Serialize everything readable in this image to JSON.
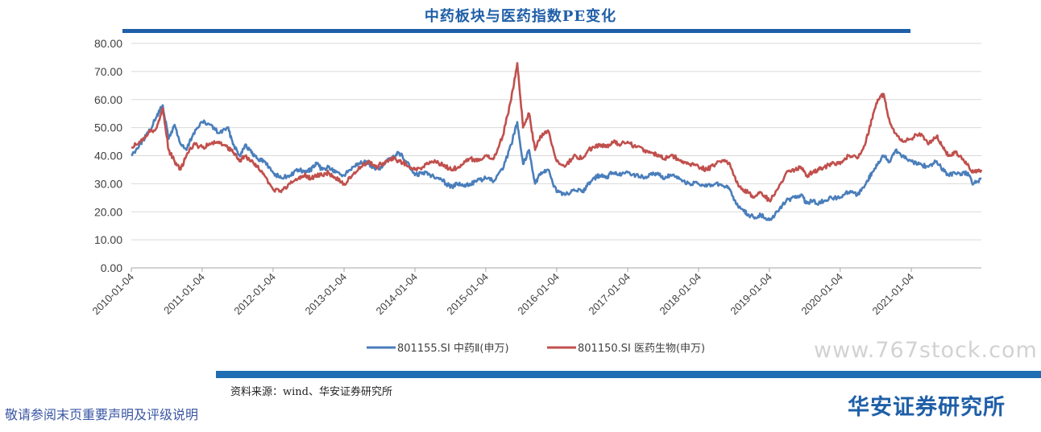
{
  "chart_data": {
    "type": "line",
    "title": "中药板块与医药指数PE变化",
    "ylim": [
      0,
      80
    ],
    "ytick_labels": [
      "0.00",
      "10.00",
      "20.00",
      "30.00",
      "40.00",
      "50.00",
      "60.00",
      "70.00",
      "80.00"
    ],
    "x_ticks": [
      "2010-01-04",
      "2011-01-04",
      "2012-01-04",
      "2013-01-04",
      "2014-01-04",
      "2015-01-04",
      "2016-01-04",
      "2017-01-04",
      "2018-01-04",
      "2019-01-04",
      "2020-01-04",
      "2021-01-04"
    ],
    "x_range": [
      "2010-01-04",
      "2021-12-31"
    ],
    "grid": true,
    "legend_position": "bottom",
    "series": [
      {
        "name": "801155.SI 中药Ⅱ(申万)",
        "color": "#4a7ebb",
        "points": [
          [
            "2010-01-04",
            40
          ],
          [
            "2010-02-15",
            44
          ],
          [
            "2010-04-01",
            48
          ],
          [
            "2010-05-15",
            54
          ],
          [
            "2010-06-15",
            58
          ],
          [
            "2010-07-15",
            46
          ],
          [
            "2010-08-15",
            51
          ],
          [
            "2010-09-15",
            44
          ],
          [
            "2010-10-15",
            42
          ],
          [
            "2010-11-20",
            48
          ],
          [
            "2011-01-04",
            52
          ],
          [
            "2011-02-15",
            51
          ],
          [
            "2011-04-01",
            48
          ],
          [
            "2011-05-15",
            50
          ],
          [
            "2011-06-15",
            44
          ],
          [
            "2011-07-15",
            40
          ],
          [
            "2011-08-15",
            44
          ],
          [
            "2011-09-15",
            41
          ],
          [
            "2011-10-15",
            39
          ],
          [
            "2011-11-20",
            38
          ],
          [
            "2012-01-04",
            34
          ],
          [
            "2012-02-15",
            32
          ],
          [
            "2012-04-01",
            33
          ],
          [
            "2012-05-15",
            35
          ],
          [
            "2012-06-15",
            34
          ],
          [
            "2012-07-15",
            35
          ],
          [
            "2012-08-15",
            37
          ],
          [
            "2012-09-15",
            35
          ],
          [
            "2012-10-15",
            36
          ],
          [
            "2012-11-20",
            34
          ],
          [
            "2013-01-04",
            33
          ],
          [
            "2013-02-15",
            36
          ],
          [
            "2013-04-01",
            38
          ],
          [
            "2013-05-15",
            37
          ],
          [
            "2013-06-15",
            35
          ],
          [
            "2013-07-15",
            36
          ],
          [
            "2013-08-15",
            38
          ],
          [
            "2013-09-15",
            40
          ],
          [
            "2013-10-15",
            41
          ],
          [
            "2013-11-20",
            38
          ],
          [
            "2014-01-04",
            33
          ],
          [
            "2014-02-15",
            34
          ],
          [
            "2014-04-01",
            33
          ],
          [
            "2014-05-15",
            32
          ],
          [
            "2014-06-15",
            30
          ],
          [
            "2014-07-15",
            29
          ],
          [
            "2014-08-15",
            30
          ],
          [
            "2014-09-15",
            29
          ],
          [
            "2014-10-15",
            30
          ],
          [
            "2014-11-20",
            31
          ],
          [
            "2015-01-04",
            32
          ],
          [
            "2015-02-15",
            31
          ],
          [
            "2015-04-01",
            35
          ],
          [
            "2015-05-15",
            44
          ],
          [
            "2015-06-15",
            52
          ],
          [
            "2015-07-15",
            37
          ],
          [
            "2015-08-15",
            42
          ],
          [
            "2015-09-15",
            30
          ],
          [
            "2015-10-15",
            34
          ],
          [
            "2015-11-20",
            35
          ],
          [
            "2016-01-04",
            27
          ],
          [
            "2016-02-15",
            26
          ],
          [
            "2016-04-01",
            28
          ],
          [
            "2016-05-15",
            27
          ],
          [
            "2016-06-15",
            30
          ],
          [
            "2016-07-15",
            32
          ],
          [
            "2016-08-15",
            33
          ],
          [
            "2016-09-15",
            32
          ],
          [
            "2016-10-15",
            34
          ],
          [
            "2016-11-20",
            33
          ],
          [
            "2017-01-04",
            34
          ],
          [
            "2017-02-15",
            33
          ],
          [
            "2017-04-01",
            32
          ],
          [
            "2017-05-15",
            34
          ],
          [
            "2017-06-15",
            33
          ],
          [
            "2017-07-15",
            32
          ],
          [
            "2017-08-15",
            33
          ],
          [
            "2017-09-15",
            32
          ],
          [
            "2017-10-15",
            31
          ],
          [
            "2017-11-20",
            30
          ],
          [
            "2018-01-04",
            30
          ],
          [
            "2018-02-15",
            29
          ],
          [
            "2018-04-01",
            30
          ],
          [
            "2018-05-15",
            29
          ],
          [
            "2018-06-15",
            28
          ],
          [
            "2018-07-15",
            23
          ],
          [
            "2018-08-15",
            21
          ],
          [
            "2018-09-15",
            19
          ],
          [
            "2018-10-15",
            18
          ],
          [
            "2018-11-20",
            19
          ],
          [
            "2019-01-04",
            17
          ],
          [
            "2019-02-15",
            20
          ],
          [
            "2019-04-01",
            24
          ],
          [
            "2019-05-15",
            25
          ],
          [
            "2019-06-15",
            26
          ],
          [
            "2019-07-15",
            23
          ],
          [
            "2019-08-15",
            24
          ],
          [
            "2019-09-15",
            23
          ],
          [
            "2019-10-15",
            24
          ],
          [
            "2019-11-20",
            25
          ],
          [
            "2020-01-04",
            25
          ],
          [
            "2020-02-15",
            27
          ],
          [
            "2020-04-01",
            26
          ],
          [
            "2020-05-15",
            30
          ],
          [
            "2020-06-15",
            34
          ],
          [
            "2020-07-15",
            37
          ],
          [
            "2020-08-15",
            40
          ],
          [
            "2020-09-15",
            38
          ],
          [
            "2020-10-15",
            42
          ],
          [
            "2020-11-20",
            40
          ],
          [
            "2021-01-04",
            38
          ],
          [
            "2021-02-15",
            37
          ],
          [
            "2021-04-01",
            36
          ],
          [
            "2021-05-15",
            38
          ],
          [
            "2021-06-15",
            35
          ],
          [
            "2021-07-15",
            33
          ],
          [
            "2021-08-15",
            34
          ],
          [
            "2021-09-15",
            33
          ],
          [
            "2021-10-15",
            34
          ],
          [
            "2021-11-20",
            30
          ],
          [
            "2021-12-31",
            32
          ]
        ]
      },
      {
        "name": "801150.SI 医药生物(申万)",
        "color": "#c0504d",
        "points": [
          [
            "2010-01-04",
            43
          ],
          [
            "2010-02-15",
            45
          ],
          [
            "2010-04-01",
            48
          ],
          [
            "2010-05-15",
            50
          ],
          [
            "2010-06-15",
            57
          ],
          [
            "2010-07-15",
            42
          ],
          [
            "2010-08-15",
            38
          ],
          [
            "2010-09-15",
            35
          ],
          [
            "2010-10-15",
            40
          ],
          [
            "2010-11-20",
            44
          ],
          [
            "2011-01-04",
            43
          ],
          [
            "2011-02-15",
            44
          ],
          [
            "2011-04-01",
            45
          ],
          [
            "2011-05-15",
            43
          ],
          [
            "2011-06-15",
            41
          ],
          [
            "2011-07-15",
            38
          ],
          [
            "2011-08-15",
            40
          ],
          [
            "2011-09-15",
            38
          ],
          [
            "2011-10-15",
            36
          ],
          [
            "2011-11-20",
            33
          ],
          [
            "2012-01-04",
            28
          ],
          [
            "2012-02-15",
            27
          ],
          [
            "2012-04-01",
            30
          ],
          [
            "2012-05-15",
            32
          ],
          [
            "2012-06-15",
            33
          ],
          [
            "2012-07-15",
            32
          ],
          [
            "2012-08-15",
            33
          ],
          [
            "2012-09-15",
            33
          ],
          [
            "2012-10-15",
            34
          ],
          [
            "2012-11-20",
            32
          ],
          [
            "2013-01-04",
            30
          ],
          [
            "2013-02-15",
            33
          ],
          [
            "2013-04-01",
            36
          ],
          [
            "2013-05-15",
            38
          ],
          [
            "2013-06-15",
            36
          ],
          [
            "2013-07-15",
            37
          ],
          [
            "2013-08-15",
            38
          ],
          [
            "2013-09-15",
            39
          ],
          [
            "2013-10-15",
            38
          ],
          [
            "2013-11-20",
            37
          ],
          [
            "2014-01-04",
            35
          ],
          [
            "2014-02-15",
            36
          ],
          [
            "2014-04-01",
            38
          ],
          [
            "2014-05-15",
            37
          ],
          [
            "2014-06-15",
            36
          ],
          [
            "2014-07-15",
            35
          ],
          [
            "2014-08-15",
            36
          ],
          [
            "2014-09-15",
            38
          ],
          [
            "2014-10-15",
            39
          ],
          [
            "2014-11-20",
            38
          ],
          [
            "2015-01-04",
            40
          ],
          [
            "2015-02-15",
            39
          ],
          [
            "2015-04-01",
            47
          ],
          [
            "2015-05-15",
            60
          ],
          [
            "2015-06-15",
            73
          ],
          [
            "2015-07-15",
            50
          ],
          [
            "2015-08-15",
            55
          ],
          [
            "2015-09-15",
            42
          ],
          [
            "2015-10-15",
            47
          ],
          [
            "2015-11-20",
            49
          ],
          [
            "2016-01-04",
            38
          ],
          [
            "2016-02-15",
            36
          ],
          [
            "2016-04-01",
            40
          ],
          [
            "2016-05-15",
            39
          ],
          [
            "2016-06-15",
            42
          ],
          [
            "2016-07-15",
            43
          ],
          [
            "2016-08-15",
            44
          ],
          [
            "2016-09-15",
            43
          ],
          [
            "2016-10-15",
            45
          ],
          [
            "2016-11-20",
            44
          ],
          [
            "2017-01-04",
            45
          ],
          [
            "2017-02-15",
            43
          ],
          [
            "2017-04-01",
            42
          ],
          [
            "2017-05-15",
            41
          ],
          [
            "2017-06-15",
            40
          ],
          [
            "2017-07-15",
            39
          ],
          [
            "2017-08-15",
            40
          ],
          [
            "2017-09-15",
            39
          ],
          [
            "2017-10-15",
            38
          ],
          [
            "2017-11-20",
            37
          ],
          [
            "2018-01-04",
            36
          ],
          [
            "2018-02-15",
            35
          ],
          [
            "2018-04-01",
            37
          ],
          [
            "2018-05-15",
            38
          ],
          [
            "2018-06-15",
            37
          ],
          [
            "2018-07-15",
            31
          ],
          [
            "2018-08-15",
            28
          ],
          [
            "2018-09-15",
            27
          ],
          [
            "2018-10-15",
            25
          ],
          [
            "2018-11-20",
            27
          ],
          [
            "2019-01-04",
            24
          ],
          [
            "2019-02-15",
            28
          ],
          [
            "2019-04-01",
            34
          ],
          [
            "2019-05-15",
            35
          ],
          [
            "2019-06-15",
            36
          ],
          [
            "2019-07-15",
            33
          ],
          [
            "2019-08-15",
            34
          ],
          [
            "2019-09-15",
            35
          ],
          [
            "2019-10-15",
            36
          ],
          [
            "2019-11-20",
            37
          ],
          [
            "2020-01-04",
            37
          ],
          [
            "2020-02-15",
            40
          ],
          [
            "2020-04-01",
            39
          ],
          [
            "2020-05-15",
            45
          ],
          [
            "2020-06-15",
            53
          ],
          [
            "2020-07-15",
            60
          ],
          [
            "2020-08-15",
            62
          ],
          [
            "2020-09-15",
            52
          ],
          [
            "2020-10-15",
            48
          ],
          [
            "2020-11-20",
            45
          ],
          [
            "2021-01-04",
            46
          ],
          [
            "2021-02-15",
            48
          ],
          [
            "2021-04-01",
            44
          ],
          [
            "2021-05-15",
            47
          ],
          [
            "2021-06-15",
            43
          ],
          [
            "2021-07-15",
            40
          ],
          [
            "2021-08-15",
            41
          ],
          [
            "2021-09-15",
            40
          ],
          [
            "2021-10-15",
            37
          ],
          [
            "2021-11-20",
            34
          ],
          [
            "2021-12-31",
            35
          ]
        ]
      }
    ]
  },
  "watermark": "www.767stock.com",
  "source_note": "资料来源：wind、华安证券研究所",
  "footer": {
    "left": "敬请参阅末页重要声明及评级说明",
    "right": "华安证券研究所"
  }
}
